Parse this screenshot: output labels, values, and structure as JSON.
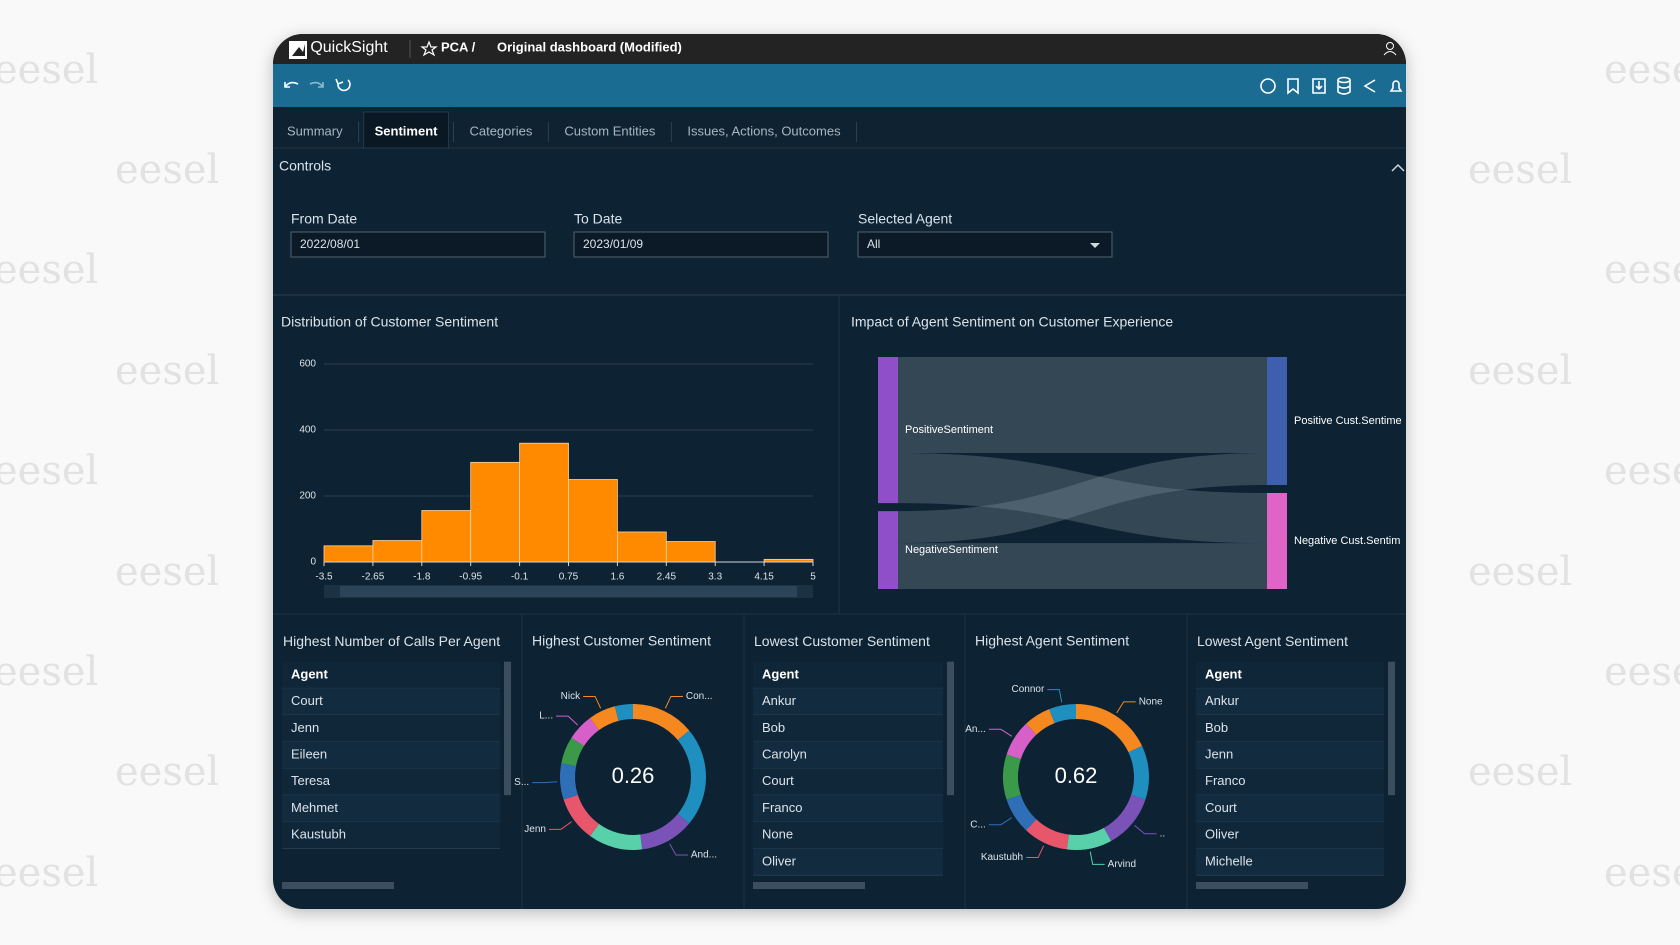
{
  "watermark": "eesel",
  "app": {
    "name": "QuickSight",
    "breadcrumb": "PCA /",
    "dashboard": "Original dashboard (Modified)"
  },
  "tabs": [
    "Summary",
    "Sentiment",
    "Categories",
    "Custom Entities",
    "Issues, Actions, Outcomes"
  ],
  "active_tab": 1,
  "controls": {
    "title": "Controls",
    "fields": [
      {
        "label": "From Date",
        "value": "2022/08/01"
      },
      {
        "label": "To Date",
        "value": "2023/01/09"
      },
      {
        "label": "Selected Agent",
        "value": "All",
        "dropdown": true
      }
    ]
  },
  "histogram": {
    "type": "histogram",
    "title": "Distribution of Customer Sentiment",
    "bins": [
      -3.5,
      -2.65,
      -1.8,
      -0.95,
      -0.1,
      0.75,
      1.6,
      2.45,
      3.3,
      4.15,
      5
    ],
    "values": [
      49,
      65,
      156,
      302,
      360,
      250,
      91,
      62,
      0,
      8
    ],
    "color": "#ff8a00",
    "xlim": [
      -3.5,
      5
    ],
    "xticks": [
      -3.5,
      -2.65,
      -1.8,
      -0.95,
      -0.1,
      0.75,
      1.6,
      2.45,
      3.3,
      4.15,
      5
    ],
    "ylim": [
      0,
      600
    ],
    "yticks": [
      0,
      200,
      400,
      600
    ],
    "grid": true
  },
  "sankey": {
    "type": "sankey",
    "title": "Impact of Agent Sentiment on Customer Experience",
    "nodes": [
      {
        "name": "PositiveSentiment",
        "color": "#8e4fc8"
      },
      {
        "name": "NegativeSentiment",
        "color": "#8e4fc8"
      },
      {
        "name": "Positive Cust.Sentime",
        "color": "#3d5fae"
      },
      {
        "name": "Negative Cust.Sentim",
        "color": "#e064c8"
      }
    ],
    "links": [
      {
        "source": 0,
        "target": 2,
        "value": 90
      },
      {
        "source": 0,
        "target": 3,
        "value": 47
      },
      {
        "source": 1,
        "target": 2,
        "value": 30
      },
      {
        "source": 1,
        "target": 3,
        "value": 43
      }
    ]
  },
  "panels": [
    {
      "type": "table",
      "title": "Highest Number of Calls Per Agent",
      "header": "Agent",
      "rows": [
        "Court",
        "Jenn",
        "Eileen",
        "Teresa",
        "Mehmet",
        "Kaustubh"
      ]
    },
    {
      "type": "donut",
      "title": "Highest Customer Sentiment",
      "value": 0.26,
      "segments": [
        {
          "name": "Con...",
          "color": "#f5891f",
          "value": 14
        },
        {
          "name": null,
          "color": "#1f8fbf",
          "value": 22
        },
        {
          "name": "And...",
          "color": "#7b52b8",
          "value": 12
        },
        {
          "name": null,
          "color": "#58d0a9",
          "value": 12
        },
        {
          "name": "Jenn",
          "color": "#e8566c",
          "value": 10
        },
        {
          "name": "S...",
          "color": "#2f6fb8",
          "value": 8
        },
        {
          "name": null,
          "color": "#3b9a4a",
          "value": 6
        },
        {
          "name": "L...",
          "color": "#d660c8",
          "value": 6
        },
        {
          "name": "Nick",
          "color": "#f5891f",
          "value": 6
        },
        {
          "name": null,
          "color": "#1f8fbf",
          "value": 4
        }
      ]
    },
    {
      "type": "table",
      "title": "Lowest Customer Sentiment",
      "header": "Agent",
      "rows": [
        "Ankur",
        "Bob",
        "Carolyn",
        "Court",
        "Franco",
        "None",
        "Oliver"
      ]
    },
    {
      "type": "donut",
      "title": "Highest Agent Sentiment",
      "value": 0.62,
      "segments": [
        {
          "name": "None",
          "color": "#f5891f",
          "value": 18
        },
        {
          "name": null,
          "color": "#1f8fbf",
          "value": 12
        },
        {
          "name": "..",
          "color": "#7b52b8",
          "value": 12
        },
        {
          "name": "Arvind",
          "color": "#58d0a9",
          "value": 10
        },
        {
          "name": "Kaustubh",
          "color": "#e8566c",
          "value": 10
        },
        {
          "name": "C...",
          "color": "#2f6fb8",
          "value": 8
        },
        {
          "name": null,
          "color": "#3b9a4a",
          "value": 10
        },
        {
          "name": "An...",
          "color": "#d660c8",
          "value": 8
        },
        {
          "name": null,
          "color": "#f5891f",
          "value": 6
        },
        {
          "name": "Connor",
          "color": "#1f8fbf",
          "value": 6
        }
      ]
    },
    {
      "type": "table",
      "title": "Lowest Agent Sentiment",
      "header": "Agent",
      "rows": [
        "Ankur",
        "Bob",
        "Jenn",
        "Franco",
        "Court",
        "Oliver",
        "Michelle"
      ]
    }
  ]
}
